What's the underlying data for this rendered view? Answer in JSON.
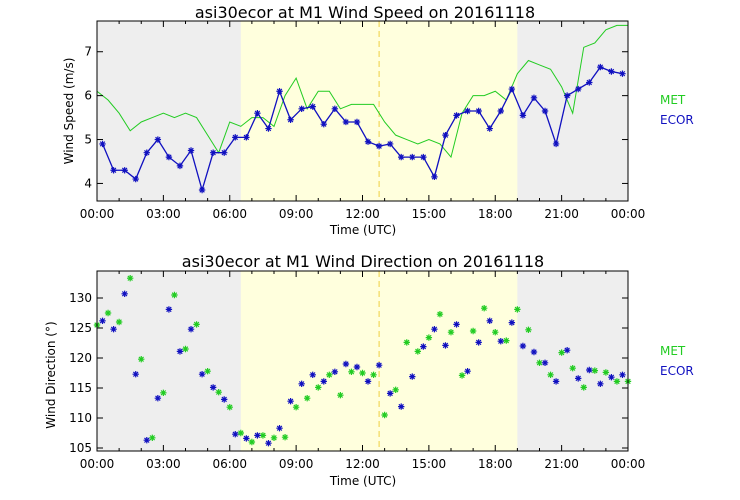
{
  "colors": {
    "met": "#22cc22",
    "ecor": "#1010c0",
    "night_shade": "#eeeeee",
    "day_shade": "#ffffdd",
    "solar_noon_line": "#f0d040"
  },
  "chart_data": [
    {
      "type": "line",
      "title": "asi30ecor at M1 Wind Speed on 20161118",
      "xlabel": "Time (UTC)",
      "ylabel": "Wind Speed (m/s)",
      "xlim": [
        0,
        24
      ],
      "ylim": [
        3.6,
        7.7
      ],
      "xticks": [
        0,
        3,
        6,
        9,
        12,
        15,
        18,
        21,
        24
      ],
      "xtick_labels": [
        "00:00",
        "03:00",
        "06:00",
        "09:00",
        "12:00",
        "15:00",
        "18:00",
        "21:00",
        "00:00"
      ],
      "yticks": [
        4,
        5,
        6,
        7
      ],
      "ytick_labels": [
        "4",
        "5",
        "6",
        "7"
      ],
      "daylight": [
        6.5,
        19.0
      ],
      "solar_noon": 12.75,
      "legend": [
        "MET",
        "ECOR"
      ],
      "series": [
        {
          "name": "MET",
          "x": [
            0,
            0.5,
            1,
            1.5,
            2,
            2.5,
            3,
            3.5,
            4,
            4.5,
            5,
            5.5,
            6,
            6.5,
            7,
            7.5,
            8,
            8.5,
            9,
            9.5,
            10,
            10.5,
            11,
            11.5,
            12,
            12.5,
            13,
            13.5,
            14,
            14.5,
            15,
            15.5,
            16,
            16.5,
            17,
            17.5,
            18,
            18.5,
            19,
            19.5,
            20,
            20.5,
            21,
            21.5,
            22,
            22.5,
            23,
            23.5,
            24
          ],
          "y": [
            6.1,
            5.9,
            5.6,
            5.2,
            5.4,
            5.5,
            5.6,
            5.5,
            5.6,
            5.5,
            5.1,
            4.7,
            5.4,
            5.3,
            5.5,
            5.5,
            5.3,
            6.0,
            6.4,
            5.7,
            6.1,
            6.1,
            5.7,
            5.8,
            5.8,
            5.8,
            5.4,
            5.1,
            5.0,
            4.9,
            5.0,
            4.9,
            4.6,
            5.6,
            6.0,
            6.0,
            6.1,
            5.9,
            6.5,
            6.8,
            6.7,
            6.6,
            6.2,
            5.6,
            7.1,
            7.2,
            7.5,
            7.6,
            7.6
          ]
        },
        {
          "name": "ECOR",
          "x": [
            0.25,
            0.75,
            1.25,
            1.75,
            2.25,
            2.75,
            3.25,
            3.75,
            4.25,
            4.75,
            5.25,
            5.75,
            6.25,
            6.75,
            7.25,
            7.75,
            8.25,
            8.75,
            9.25,
            9.75,
            10.25,
            10.75,
            11.25,
            11.75,
            12.25,
            12.75,
            13.25,
            13.75,
            14.25,
            14.75,
            15.25,
            15.75,
            16.25,
            16.75,
            17.25,
            17.75,
            18.25,
            18.75,
            19.25,
            19.75,
            20.25,
            20.75,
            21.25,
            21.75,
            22.25,
            22.75,
            23.25,
            23.75
          ],
          "y": [
            4.9,
            4.3,
            4.3,
            4.1,
            4.7,
            5.0,
            4.6,
            4.4,
            4.75,
            3.85,
            4.7,
            4.7,
            5.05,
            5.05,
            5.6,
            5.25,
            6.1,
            5.45,
            5.7,
            5.75,
            5.35,
            5.7,
            5.4,
            5.4,
            4.95,
            4.85,
            4.9,
            4.6,
            4.6,
            4.6,
            4.15,
            5.1,
            5.55,
            5.65,
            5.65,
            5.25,
            5.65,
            6.15,
            5.55,
            5.95,
            5.65,
            4.9,
            6.0,
            6.15,
            6.3,
            6.65,
            6.55,
            6.5
          ]
        }
      ]
    },
    {
      "type": "scatter",
      "title": "asi30ecor at M1 Wind Direction on 20161118",
      "xlabel": "Time (UTC)",
      "ylabel": "Wind Direction (°)",
      "xlim": [
        0,
        24
      ],
      "ylim": [
        104.5,
        134.5
      ],
      "xticks": [
        0,
        3,
        6,
        9,
        12,
        15,
        18,
        21,
        24
      ],
      "xtick_labels": [
        "00:00",
        "03:00",
        "06:00",
        "09:00",
        "12:00",
        "15:00",
        "18:00",
        "21:00",
        "00:00"
      ],
      "yticks": [
        105,
        110,
        115,
        120,
        125,
        130
      ],
      "ytick_labels": [
        "105",
        "110",
        "115",
        "120",
        "125",
        "130"
      ],
      "daylight": [
        6.5,
        19.0
      ],
      "solar_noon": 12.75,
      "legend": [
        "MET",
        "ECOR"
      ],
      "series": [
        {
          "name": "MET",
          "x": [
            0,
            0.5,
            1,
            1.5,
            2,
            2.5,
            3,
            3.5,
            4,
            4.5,
            5,
            5.5,
            6,
            6.5,
            7,
            7.5,
            8,
            8.5,
            9,
            9.5,
            10,
            10.5,
            11,
            11.5,
            12,
            12.5,
            13,
            13.5,
            14,
            14.5,
            15,
            15.5,
            16,
            16.5,
            17,
            17.5,
            18,
            18.5,
            19,
            19.5,
            20,
            20.5,
            21,
            21.5,
            22,
            22.5,
            23,
            23.5,
            24
          ],
          "y": [
            125.5,
            127.5,
            126.0,
            133.3,
            119.8,
            106.7,
            114.2,
            130.5,
            121.5,
            125.6,
            117.8,
            114.3,
            111.8,
            107.5,
            106.0,
            107.1,
            106.7,
            106.8,
            111.8,
            113.3,
            115.1,
            117.2,
            113.8,
            117.7,
            117.5,
            117.2,
            110.5,
            114.7,
            122.6,
            121.1,
            123.4,
            127.3,
            124.3,
            117.1,
            124.5,
            128.3,
            124.3,
            122.9,
            128.1,
            124.7,
            119.2,
            117.2,
            120.9,
            118.3,
            115.1,
            117.9,
            117.6,
            116.1,
            116.1
          ]
        },
        {
          "name": "ECOR",
          "x": [
            0.25,
            0.75,
            1.25,
            1.75,
            2.25,
            2.75,
            3.25,
            3.75,
            4.25,
            4.75,
            5.25,
            5.75,
            6.25,
            6.75,
            7.25,
            7.75,
            8.25,
            8.75,
            9.25,
            9.75,
            10.25,
            10.75,
            11.25,
            11.75,
            12.25,
            12.75,
            13.25,
            13.75,
            14.25,
            14.75,
            15.25,
            15.75,
            16.25,
            16.75,
            17.25,
            17.75,
            18.25,
            18.75,
            19.25,
            19.75,
            20.25,
            20.75,
            21.25,
            21.75,
            22.25,
            22.75,
            23.25,
            23.75
          ],
          "y": [
            126.2,
            124.8,
            130.7,
            117.3,
            106.3,
            113.3,
            128.1,
            121.1,
            124.8,
            117.3,
            115.1,
            113.1,
            107.3,
            106.6,
            107.1,
            105.8,
            108.3,
            112.8,
            115.7,
            117.2,
            116.1,
            117.7,
            119.0,
            118.5,
            116.1,
            118.8,
            114.1,
            111.9,
            116.9,
            121.9,
            124.8,
            122.1,
            125.6,
            117.8,
            122.6,
            126.2,
            122.8,
            125.9,
            122.0,
            121.0,
            119.2,
            116.1,
            121.3,
            116.6,
            118.0,
            115.7,
            116.8,
            117.2
          ]
        }
      ]
    }
  ]
}
